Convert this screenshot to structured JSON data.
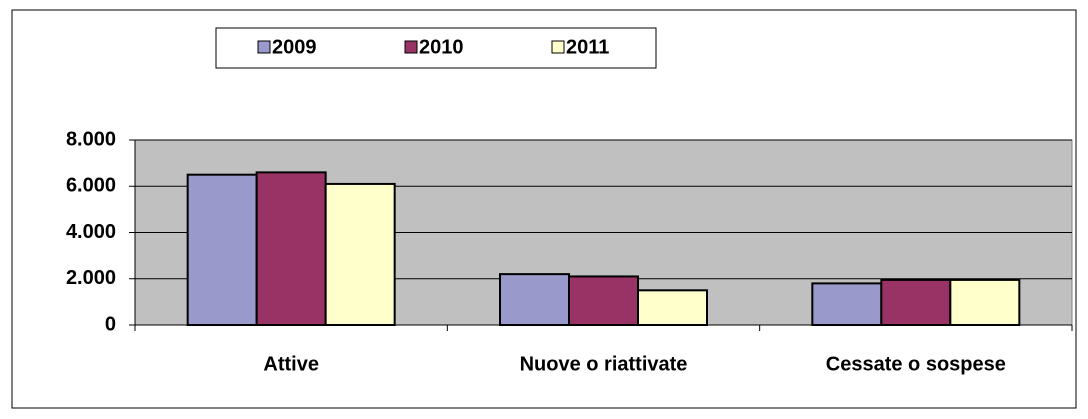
{
  "chart_data": {
    "type": "bar",
    "categories": [
      "Attive",
      "Nuove o riattivate",
      "Cessate o sospese"
    ],
    "series": [
      {
        "name": "2009",
        "color": "#9999cc",
        "values": [
          6500,
          2200,
          1800
        ]
      },
      {
        "name": "2010",
        "color": "#993366",
        "values": [
          6600,
          2100,
          1950
        ]
      },
      {
        "name": "2011",
        "color": "#ffffcc",
        "values": [
          6100,
          1500,
          1950
        ]
      }
    ],
    "ylim": [
      0,
      8000
    ],
    "yticks": [
      0,
      {
        "value": 2000,
        "label": "2.000"
      },
      {
        "value": 4000,
        "label": "4.000"
      },
      {
        "value": 6000,
        "label": "6.000"
      },
      {
        "value": 8000,
        "label": "8.000"
      }
    ],
    "grid": true,
    "legend": "top"
  }
}
